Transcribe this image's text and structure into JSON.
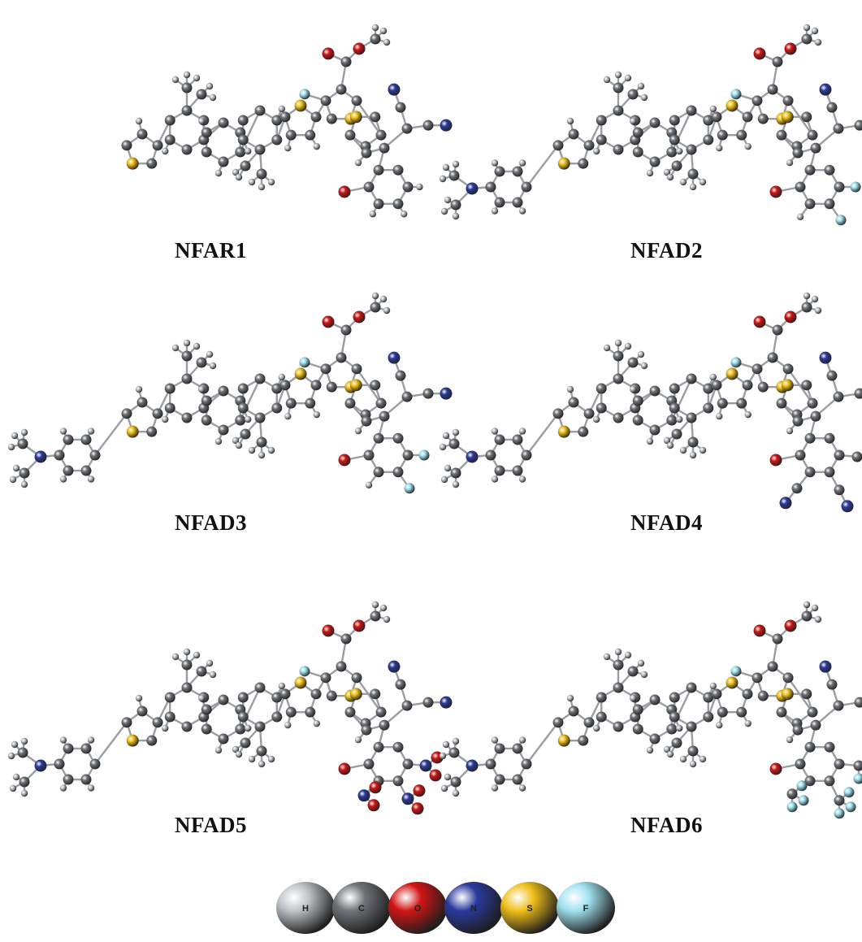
{
  "molecules": [
    {
      "name": "NFAR1"
    },
    {
      "name": "NFAD2"
    },
    {
      "name": "NFAD3"
    },
    {
      "name": "NFAD4"
    },
    {
      "name": "NFAD5"
    },
    {
      "name": "NFAD6"
    }
  ],
  "legend": {
    "atoms": [
      {
        "symbol": "H",
        "color": "#bfc3c7"
      },
      {
        "symbol": "C",
        "color": "#6f7277"
      },
      {
        "symbol": "O",
        "color": "#d11414"
      },
      {
        "symbol": "N",
        "color": "#2a3a9e"
      },
      {
        "symbol": "S",
        "color": "#f0bf19"
      },
      {
        "symbol": "F",
        "color": "#9fe1ef"
      }
    ]
  }
}
